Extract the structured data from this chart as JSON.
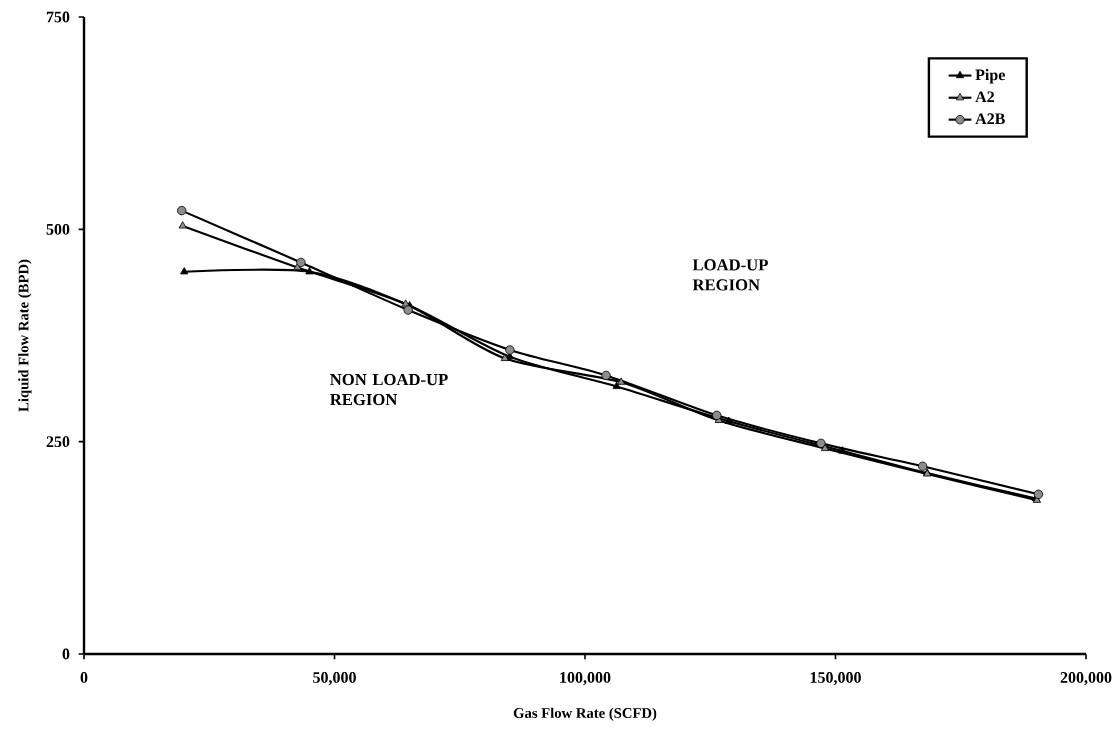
{
  "chart_data": {
    "type": "line",
    "xlabel": "Gas Flow Rate (SCFD)",
    "ylabel": "Liquid Flow Rate (BPD)",
    "xlim": [
      0,
      200000
    ],
    "ylim": [
      0,
      750
    ],
    "xticks": [
      0,
      {
        "value": 50000,
        "label": "50,000"
      },
      {
        "value": 100000,
        "label": "100,000"
      },
      {
        "value": 150000,
        "label": "150,000"
      },
      {
        "value": 200000,
        "label": "200,000"
      }
    ],
    "yticks": [
      0,
      250,
      500,
      750
    ],
    "grid": false,
    "legend": "top right",
    "line_style": "solid",
    "annotations": [
      "NON LOAD-UP REGION",
      "LOAD-UP REGION"
    ],
    "series": [
      {
        "name": "Pipe",
        "color": "#000000",
        "marker": "triangle",
        "x": [
          20000,
          45000,
          65000,
          85000,
          106300,
          128700,
          151400,
          168300,
          190000
        ],
        "values": [
          450,
          450,
          410,
          350,
          315,
          274,
          239,
          213,
          183
        ]
      },
      {
        "name": "A2",
        "color": "#000000",
        "marker": "triangle",
        "x": [
          19700,
          42600,
          64200,
          84000,
          107200,
          126700,
          147900,
          168300,
          190200
        ],
        "values": [
          504,
          455,
          412,
          348,
          320,
          275,
          242,
          212,
          181
        ]
      },
      {
        "name": "A2B",
        "color": "#000000",
        "marker": "circle",
        "x": [
          19500,
          43300,
          64700,
          85000,
          104200,
          126300,
          147100,
          167400,
          190500
        ],
        "values": [
          522,
          461,
          405,
          358,
          328,
          281,
          248,
          221,
          188
        ]
      }
    ]
  }
}
